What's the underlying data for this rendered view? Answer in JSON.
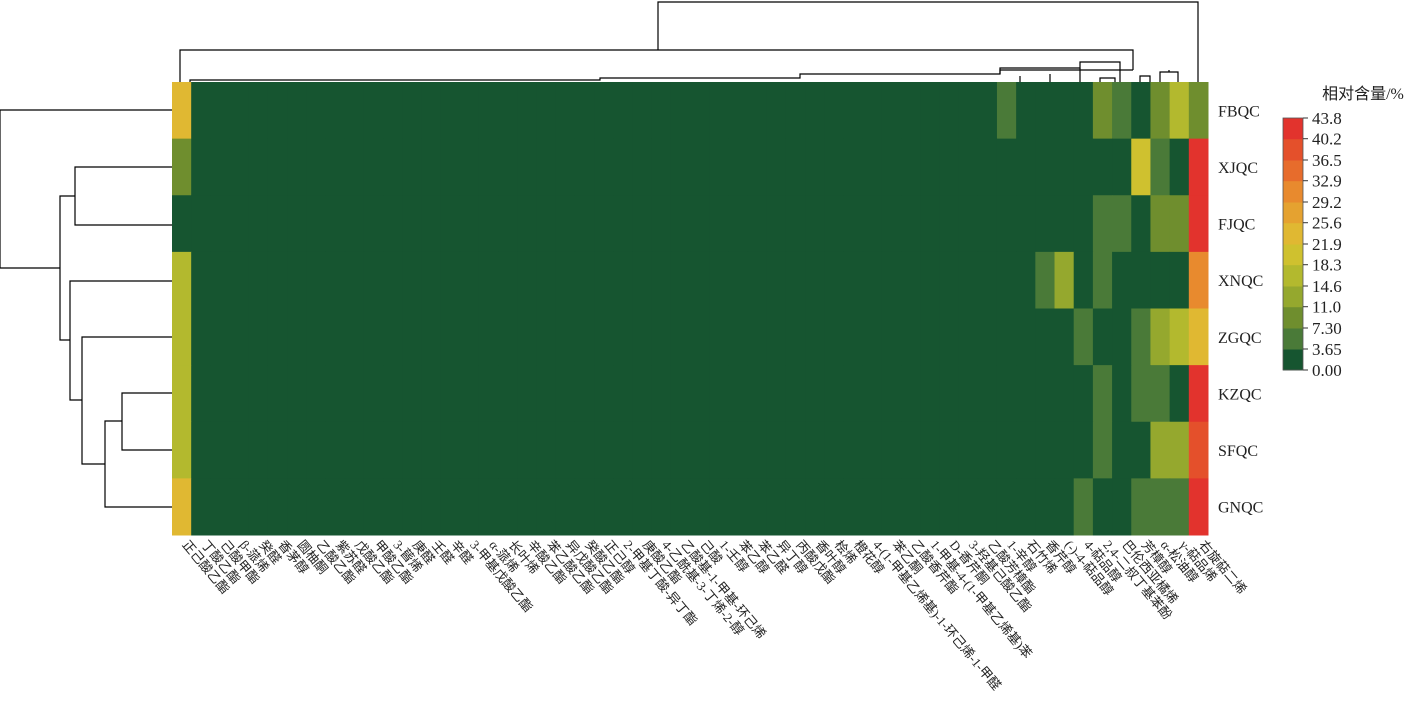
{
  "chart_data": {
    "type": "heatmap",
    "legend_title": "相对含量/%",
    "rows": [
      "FBQC",
      "XJQC",
      "FJQC",
      "XNQC",
      "ZGQC",
      "KZQC",
      "SFQC",
      "GNQC"
    ],
    "columns": [
      "正己酸乙酯",
      "丁酸乙酯",
      "己酸甲酯",
      "β-蒎烯",
      "癸醛",
      "香茅醇",
      "圆柚酮",
      "乙酸乙酯",
      "紫苏醛",
      "戊酸乙酯",
      "甲酸乙酯",
      "3-蒈烯",
      "庚醛",
      "壬醛",
      "辛醛",
      "3-甲基戊酸乙酯",
      "α-蒎烯",
      "长叶烯",
      "辛酸乙酯",
      "苯乙酸乙酯",
      "异戊酸乙酯",
      "癸酸乙酯",
      "正己醇",
      "2-甲基丁酸-异丁酯",
      "庚酸乙酯",
      "4-乙酰基-3-丁烯-2-醇",
      "乙酸基-1-甲基-环己烯",
      "己酸",
      "1-壬醇",
      "苯乙醇",
      "苯乙醛",
      "异丁醇",
      "丙酸戊酯",
      "香叶醇",
      "桧烯",
      "橙花醇",
      "4-(1-甲基乙烯基)-1-环己烯-1-甲醛",
      "苯乙酮",
      "乙酸香芹酯",
      "1-甲基-4-(1-甲基乙烯基)苯",
      "D-香芹酮",
      "3-羟基己酸乙酯",
      "乙酸芳樟酯",
      "1-辛醇",
      "石竹烯",
      "香芹醇",
      "(-)-4-萜品醇",
      "4-萜品醇",
      "2,4-二叔丁基苯酚",
      "巴伦西亚橘烯",
      "芳樟醇",
      "α-松油醇",
      "γ-萜品烯",
      "右旋萜二烯"
    ],
    "values": [
      [
        23,
        0,
        0,
        0,
        0,
        0,
        0,
        0,
        0,
        0,
        0,
        0,
        0,
        0,
        0,
        0,
        0,
        0,
        0,
        0,
        0,
        0,
        0,
        0,
        0,
        0,
        0,
        0,
        0,
        0,
        0,
        0,
        0,
        0,
        0,
        0,
        0,
        0,
        0,
        0,
        0,
        0,
        0,
        5,
        0,
        0,
        0,
        0,
        10,
        5,
        0,
        10,
        17,
        10
      ],
      [
        9,
        0,
        0,
        0,
        0,
        0,
        0,
        0,
        0,
        0,
        0,
        0,
        0,
        0,
        0,
        0,
        0,
        0,
        0,
        0,
        0,
        0,
        0,
        0,
        0,
        0,
        0,
        0,
        0,
        0,
        0,
        0,
        0,
        0,
        0,
        0,
        0,
        0,
        0,
        0,
        0,
        0,
        0,
        0,
        0,
        0,
        0,
        0,
        0,
        0,
        20,
        5,
        0,
        42
      ],
      [
        0,
        0,
        0,
        0,
        0,
        0,
        0,
        0,
        0,
        0,
        0,
        0,
        0,
        0,
        0,
        0,
        0,
        0,
        0,
        0,
        0,
        0,
        0,
        0,
        0,
        0,
        0,
        0,
        0,
        0,
        0,
        0,
        0,
        0,
        0,
        0,
        0,
        0,
        0,
        0,
        0,
        0,
        0,
        0,
        0,
        0,
        0,
        0,
        5,
        5,
        0,
        10,
        10,
        42
      ],
      [
        16,
        0,
        0,
        0,
        0,
        0,
        0,
        0,
        0,
        0,
        0,
        0,
        0,
        0,
        0,
        0,
        0,
        0,
        0,
        0,
        0,
        0,
        0,
        0,
        0,
        0,
        0,
        0,
        0,
        0,
        0,
        0,
        0,
        0,
        0,
        0,
        0,
        0,
        0,
        0,
        0,
        0,
        0,
        0,
        0,
        5,
        13,
        0,
        5,
        0,
        0,
        0,
        0,
        31
      ],
      [
        16,
        0,
        0,
        0,
        0,
        0,
        0,
        0,
        0,
        0,
        0,
        0,
        0,
        0,
        0,
        0,
        0,
        0,
        0,
        0,
        0,
        0,
        0,
        0,
        0,
        0,
        0,
        0,
        0,
        0,
        0,
        0,
        0,
        0,
        0,
        0,
        0,
        0,
        0,
        0,
        0,
        0,
        0,
        0,
        0,
        0,
        0,
        5,
        0,
        0,
        5,
        14,
        17,
        24
      ],
      [
        18,
        0,
        0,
        0,
        0,
        0,
        0,
        0,
        0,
        0,
        0,
        0,
        0,
        0,
        0,
        0,
        0,
        0,
        0,
        0,
        0,
        0,
        0,
        0,
        0,
        0,
        0,
        0,
        0,
        0,
        0,
        0,
        0,
        0,
        0,
        0,
        0,
        0,
        0,
        0,
        0,
        0,
        0,
        0,
        0,
        0,
        0,
        0,
        5,
        0,
        5,
        5,
        0,
        42
      ],
      [
        16,
        0,
        0,
        0,
        0,
        0,
        0,
        0,
        0,
        0,
        0,
        0,
        0,
        0,
        0,
        0,
        0,
        0,
        0,
        0,
        0,
        0,
        0,
        0,
        0,
        0,
        0,
        0,
        0,
        0,
        0,
        0,
        0,
        0,
        0,
        0,
        0,
        0,
        0,
        0,
        0,
        0,
        0,
        0,
        0,
        0,
        0,
        0,
        5,
        0,
        0,
        14,
        14,
        38
      ],
      [
        23,
        0,
        0,
        0,
        0,
        0,
        0,
        0,
        0,
        0,
        0,
        0,
        0,
        0,
        0,
        0,
        0,
        0,
        0,
        0,
        0,
        0,
        0,
        0,
        0,
        0,
        0,
        0,
        0,
        0,
        0,
        0,
        0,
        0,
        0,
        0,
        0,
        0,
        0,
        0,
        0,
        0,
        0,
        0,
        0,
        0,
        0,
        5,
        0,
        0,
        5,
        5,
        5,
        42
      ]
    ],
    "clim": [
      0,
      43.8
    ],
    "cticks": [
      {
        "value": 0,
        "label": "0.00"
      },
      3.65,
      {
        "value": 7.3,
        "label": "7.30"
      },
      {
        "value": 11,
        "label": "11.0"
      },
      14.6,
      18.3,
      21.9,
      25.6,
      29.2,
      32.9,
      36.5,
      40.2,
      43.8
    ],
    "colors": [
      "#165530",
      "#4a7a38",
      "#6f8e2e",
      "#95a82e",
      "#b3b92e",
      "#cfc12f",
      "#e0b832",
      "#e5a230",
      "#e88a2e",
      "#e76c2c",
      "#e4502b",
      "#e2332d"
    ]
  }
}
